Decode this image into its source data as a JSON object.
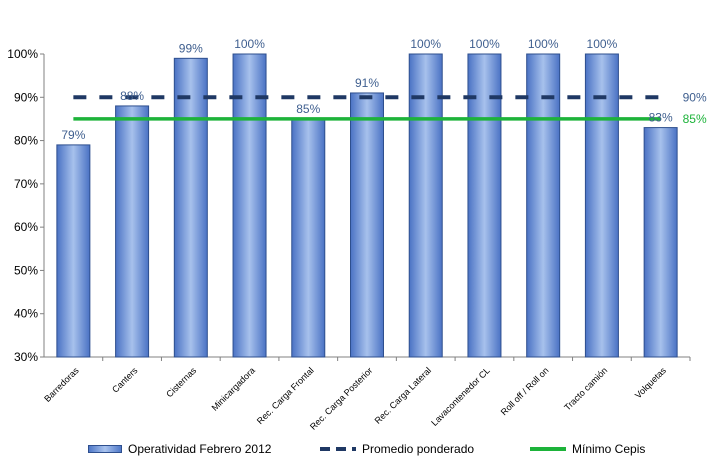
{
  "chart_data": {
    "type": "bar",
    "categories": [
      "Barredoras",
      "Canters",
      "Cisternas",
      "Minicargadora",
      "Rec. Carga Frontal",
      "Rec. Carga Posterior",
      "Rec. Carga Lateral",
      "Lavacontenedor CL",
      "Roll off / Roll on",
      "Tracto camión",
      "Volquetas"
    ],
    "series": [
      {
        "name": "Operatividad Febrero 2012",
        "values": [
          79,
          88,
          99,
          100,
          85,
          91,
          100,
          100,
          100,
          100,
          83
        ],
        "labels": [
          "79%",
          "88%",
          "99%",
          "100%",
          "85%",
          "91%",
          "100%",
          "100%",
          "100%",
          "100%",
          "83%"
        ],
        "color": "#4f78c8"
      },
      {
        "name": "Promedio ponderado",
        "value": 90,
        "label": "90%",
        "style": "dashed",
        "color": "#1f3864"
      },
      {
        "name": "Mínimo Cepis",
        "value": 85,
        "label": "85%",
        "style": "solid",
        "color": "#1db33a"
      }
    ],
    "ylim": [
      30,
      100
    ],
    "yticks": [
      "30%",
      "40%",
      "50%",
      "60%",
      "70%",
      "80%",
      "90%",
      "100%"
    ],
    "grid": false,
    "legend_position": "bottom"
  }
}
